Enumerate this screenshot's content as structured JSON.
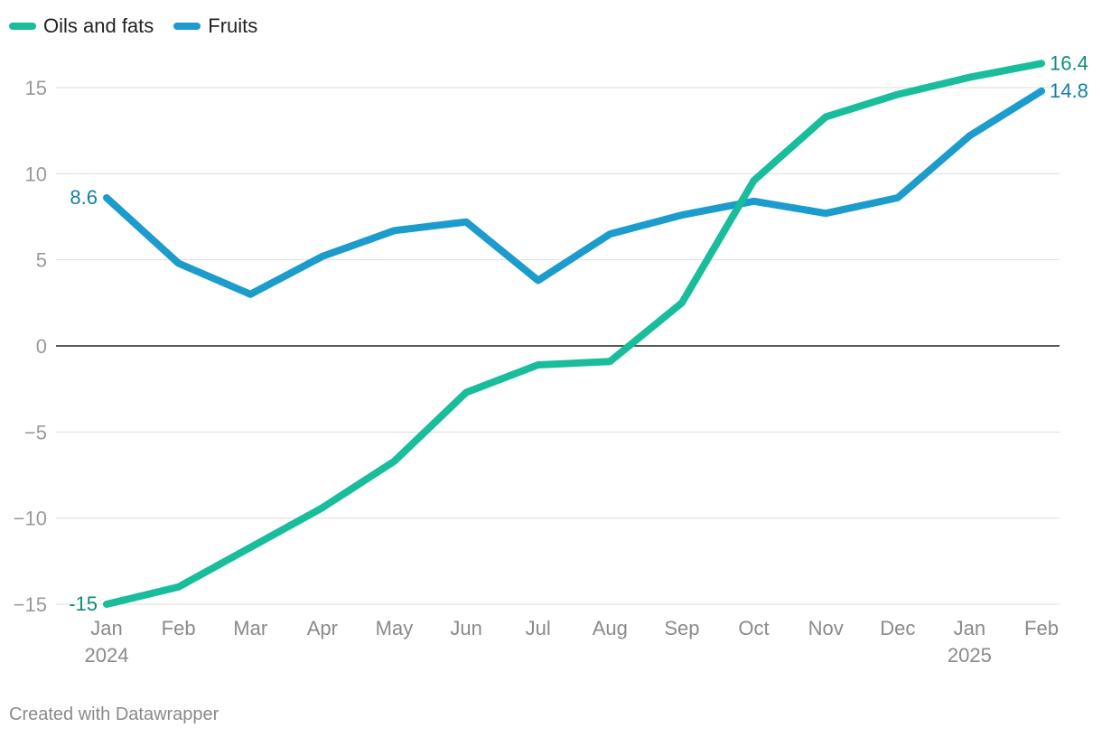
{
  "legend": {
    "items": [
      {
        "label": "Oils and fats",
        "color": "#18bd9b"
      },
      {
        "label": "Fruits",
        "color": "#1b9ccc"
      }
    ]
  },
  "footer": {
    "credit": "Created with Datawrapper"
  },
  "chart_data": {
    "type": "line",
    "x": [
      "Jan 2024",
      "Feb 2024",
      "Mar 2024",
      "Apr 2024",
      "May 2024",
      "Jun 2024",
      "Jul 2024",
      "Aug 2024",
      "Sep 2024",
      "Oct 2024",
      "Nov 2024",
      "Dec 2024",
      "Jan 2025",
      "Feb 2025"
    ],
    "tick_labels": [
      {
        "month": "Jan",
        "year": "2024"
      },
      {
        "month": "Feb",
        "year": ""
      },
      {
        "month": "Mar",
        "year": ""
      },
      {
        "month": "Apr",
        "year": ""
      },
      {
        "month": "May",
        "year": ""
      },
      {
        "month": "Jun",
        "year": ""
      },
      {
        "month": "Jul",
        "year": ""
      },
      {
        "month": "Aug",
        "year": ""
      },
      {
        "month": "Sep",
        "year": ""
      },
      {
        "month": "Oct",
        "year": ""
      },
      {
        "month": "Nov",
        "year": ""
      },
      {
        "month": "Dec",
        "year": ""
      },
      {
        "month": "Jan",
        "year": "2025"
      },
      {
        "month": "Feb",
        "year": ""
      }
    ],
    "series": [
      {
        "name": "Oils and fats",
        "color": "#18bd9b",
        "label_color": "#0f8f76",
        "values": [
          -15,
          -14,
          -11.7,
          -9.4,
          -6.7,
          -2.7,
          -1.1,
          -0.9,
          2.5,
          9.6,
          13.3,
          14.6,
          15.6,
          16.4
        ],
        "labels": {
          "first": "-15",
          "last": "16.4"
        }
      },
      {
        "name": "Fruits",
        "color": "#1b9ccc",
        "label_color": "#137fa8",
        "values": [
          8.6,
          4.8,
          3.0,
          5.2,
          6.7,
          7.2,
          3.8,
          6.5,
          7.6,
          8.4,
          7.7,
          8.6,
          12.2,
          14.8
        ],
        "labels": {
          "first": "8.6",
          "last": "14.8"
        }
      }
    ],
    "y_ticks": [
      15,
      10,
      5,
      0,
      -5,
      -10,
      -15
    ],
    "y_tick_labels": [
      "15",
      "10",
      "5",
      "0",
      "−5",
      "−10",
      "−15"
    ],
    "ylim": [
      -15,
      15
    ],
    "grid": true,
    "zero_line": true,
    "legend_position": "top-left"
  }
}
